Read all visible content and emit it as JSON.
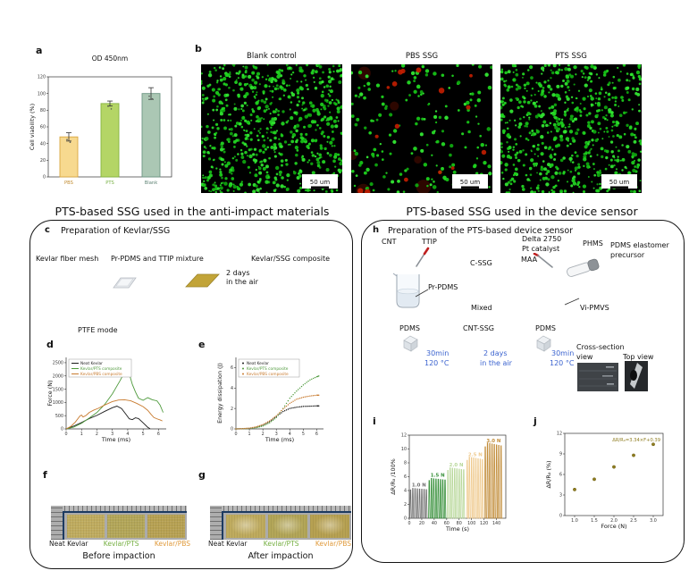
{
  "sections": {
    "left_title": "PTS-based SSG used in the anti-impact materials",
    "right_title": "PTS-based SSG used in the device sensor"
  },
  "panel_a": {
    "tag": "a"
  },
  "panel_b": {
    "tag": "b",
    "images": [
      {
        "label": "Blank control",
        "scale_label": "50 um",
        "style": "dense"
      },
      {
        "label": "PBS SSG",
        "scale_label": "50 um",
        "style": "sparse_red"
      },
      {
        "label": "PTS SSG",
        "scale_label": "50 um",
        "style": "dense2"
      }
    ]
  },
  "panel_c": {
    "tag": "c",
    "title": "Preparation of Kevlar/SSG",
    "mesh_label": "Kevlar fiber mesh",
    "mixture_label": "Pr-PDMS and TTIP mixture",
    "composite_label": "Kevlar/SSG composite",
    "duration_line1": "2 days",
    "duration_line2": "in the air"
  },
  "panel_d": {
    "tag": "d",
    "mode_title": "PTFE mode"
  },
  "panel_e": {
    "tag": "e"
  },
  "panel_f": {
    "tag": "f",
    "caption": "Before impaction",
    "strip_labels": [
      {
        "text": "Neat Kevlar",
        "color": "#1a1a1a"
      },
      {
        "text": "Kevlar/PTS",
        "color": "#76b043"
      },
      {
        "text": "Kevlar/PBS",
        "color": "#e09b3d"
      }
    ]
  },
  "panel_g": {
    "tag": "g",
    "caption": "After impaction",
    "strip_labels": [
      {
        "text": "Neat Kevlar",
        "color": "#1a1a1a"
      },
      {
        "text": "Kevlar/PTS",
        "color": "#76b043"
      },
      {
        "text": "Kevlar/PBS",
        "color": "#e09b3d"
      }
    ]
  },
  "panel_h": {
    "tag": "h",
    "title": "Preparation of the PTS-based device sensor",
    "cnt": "CNT",
    "ttip": "TTIP",
    "cssg": "C-SSG",
    "delta": "Delta 2750",
    "pt": "Pt catalyst",
    "maa": "MAA",
    "phms": "PHMS",
    "pdms_elastomer_1": "PDMS elastomer",
    "pdms_elastomer_2": "precursor",
    "pr_pdms": "Pr-PDMS",
    "mixed": "Mixed",
    "vi_pmvs": "Vi-PMVS",
    "pdms_left": "PDMS",
    "cnt_ssg": "CNT-SSG",
    "pdms_right": "PDMS",
    "cure1_line1": "30min",
    "cure1_line2": "120 °C",
    "air_line1": "2 days",
    "air_line2": "in the air",
    "cure2_line1": "30min",
    "cure2_line2": "120 °C",
    "cross_section_line1": "Cross-section",
    "cross_section_line2": "view",
    "top_view": "Top view",
    "accent_blue": "#3b63cf"
  },
  "panel_i": {
    "tag": "i"
  },
  "panel_j": {
    "tag": "j"
  },
  "chart_data": [
    {
      "id": "a",
      "type": "bar",
      "title": "OD 450nm",
      "ylabel": "Cell viability (%)",
      "categories": [
        "PBS",
        "PTS",
        "Blank"
      ],
      "values": [
        48,
        88,
        100
      ],
      "errors": [
        5,
        3,
        7
      ],
      "bar_colors": [
        "#f7d98f",
        "#b4d566",
        "#abc7b4"
      ],
      "bar_edges": [
        "#d9a741",
        "#85b440",
        "#6d9684"
      ],
      "label_colors": [
        "#c08a2e",
        "#76b043",
        "#5d8273"
      ],
      "ylim": [
        0,
        120
      ],
      "yticks": [
        0,
        20,
        40,
        60,
        80,
        100,
        120
      ]
    },
    {
      "id": "d",
      "type": "line",
      "xlabel": "Time (ms)",
      "ylabel": "Force (N)",
      "xlim": [
        0,
        6.5
      ],
      "ylim": [
        0,
        2700
      ],
      "xticks": [
        0,
        1,
        2,
        3,
        4,
        5,
        6
      ],
      "yticks": [
        0,
        500,
        1000,
        1500,
        2000,
        2500
      ],
      "series": [
        {
          "name": "Neat Kevlar",
          "color": "#1a1a1a",
          "points": [
            [
              0,
              0
            ],
            [
              0.5,
              110
            ],
            [
              1,
              240
            ],
            [
              1.5,
              390
            ],
            [
              2,
              510
            ],
            [
              2.5,
              660
            ],
            [
              3,
              800
            ],
            [
              3.3,
              860
            ],
            [
              3.6,
              770
            ],
            [
              3.9,
              540
            ],
            [
              4.1,
              380
            ],
            [
              4.3,
              350
            ],
            [
              4.5,
              420
            ],
            [
              4.7,
              390
            ],
            [
              5,
              230
            ],
            [
              5.3,
              60
            ],
            [
              5.45,
              10
            ]
          ]
        },
        {
          "name": "Kevlar/PTS composite",
          "color": "#4e9a3c",
          "points": [
            [
              0,
              0
            ],
            [
              0.5,
              70
            ],
            [
              1,
              210
            ],
            [
              1.5,
              410
            ],
            [
              2,
              620
            ],
            [
              2.5,
              920
            ],
            [
              3,
              1320
            ],
            [
              3.5,
              1820
            ],
            [
              3.9,
              2250
            ],
            [
              4.1,
              2080
            ],
            [
              4.3,
              1680
            ],
            [
              4.5,
              1400
            ],
            [
              4.7,
              1160
            ],
            [
              5,
              1080
            ],
            [
              5.3,
              1180
            ],
            [
              5.6,
              1100
            ],
            [
              5.9,
              1060
            ],
            [
              6.1,
              900
            ],
            [
              6.3,
              620
            ]
          ]
        },
        {
          "name": "Kevlar/PBS composite",
          "color": "#c87a2e",
          "points": [
            [
              0,
              0
            ],
            [
              0.3,
              90
            ],
            [
              0.6,
              260
            ],
            [
              0.9,
              490
            ],
            [
              1,
              520
            ],
            [
              1.1,
              450
            ],
            [
              1.3,
              510
            ],
            [
              1.5,
              620
            ],
            [
              1.8,
              710
            ],
            [
              2.1,
              780
            ],
            [
              2.5,
              900
            ],
            [
              3,
              1030
            ],
            [
              3.4,
              1090
            ],
            [
              3.8,
              1100
            ],
            [
              4.2,
              1060
            ],
            [
              4.6,
              960
            ],
            [
              5,
              840
            ],
            [
              5.3,
              700
            ],
            [
              5.5,
              560
            ],
            [
              5.7,
              430
            ],
            [
              5.9,
              380
            ],
            [
              6.1,
              340
            ],
            [
              6.25,
              300
            ]
          ]
        }
      ]
    },
    {
      "id": "e",
      "type": "dotline",
      "xlabel": "Time (ms)",
      "ylabel": "Energy dissipation (J)",
      "xlim": [
        0,
        6.5
      ],
      "ylim": [
        0,
        7
      ],
      "xticks": [
        0,
        1,
        2,
        3,
        4,
        5,
        6
      ],
      "yticks": [
        0,
        2,
        4,
        6
      ],
      "series": [
        {
          "name": "Neat Kevlar",
          "color": "#1a1a1a",
          "points": [
            [
              0,
              0
            ],
            [
              0.5,
              0.02
            ],
            [
              1,
              0.06
            ],
            [
              1.5,
              0.16
            ],
            [
              2,
              0.36
            ],
            [
              2.5,
              0.72
            ],
            [
              3,
              1.2
            ],
            [
              3.5,
              1.7
            ],
            [
              4,
              2.0
            ],
            [
              4.5,
              2.12
            ],
            [
              5,
              2.2
            ],
            [
              5.5,
              2.22
            ],
            [
              6,
              2.25
            ],
            [
              6.2,
              2.25
            ]
          ]
        },
        {
          "name": "Kevlar/PTS composite",
          "color": "#4e9a3c",
          "points": [
            [
              0,
              0
            ],
            [
              0.5,
              0.01
            ],
            [
              1,
              0.04
            ],
            [
              1.5,
              0.12
            ],
            [
              2,
              0.28
            ],
            [
              2.5,
              0.6
            ],
            [
              3,
              1.1
            ],
            [
              3.5,
              2.0
            ],
            [
              4,
              3.0
            ],
            [
              4.5,
              3.7
            ],
            [
              5,
              4.3
            ],
            [
              5.5,
              4.8
            ],
            [
              6,
              5.1
            ],
            [
              6.2,
              5.2
            ]
          ]
        },
        {
          "name": "Kevlar/PBS composite",
          "color": "#c87a2e",
          "points": [
            [
              0,
              0
            ],
            [
              0.5,
              0.02
            ],
            [
              1,
              0.07
            ],
            [
              1.5,
              0.2
            ],
            [
              2,
              0.42
            ],
            [
              2.5,
              0.78
            ],
            [
              3,
              1.28
            ],
            [
              3.5,
              1.95
            ],
            [
              4,
              2.5
            ],
            [
              4.5,
              2.9
            ],
            [
              5,
              3.1
            ],
            [
              5.5,
              3.22
            ],
            [
              6,
              3.3
            ],
            [
              6.2,
              3.3
            ]
          ]
        }
      ]
    },
    {
      "id": "i",
      "type": "pulse",
      "xlabel": "Time (s)",
      "ylabel": "ΔR/R₀ /100%",
      "xlim": [
        0,
        155
      ],
      "ylim": [
        0,
        12
      ],
      "xticks": [
        0,
        20,
        40,
        60,
        80,
        100,
        120,
        140
      ],
      "yticks": [
        0,
        2,
        4,
        6,
        8,
        10,
        12
      ],
      "groups": [
        {
          "label": "1.0 N",
          "color": "#6f6f6f",
          "start": 1,
          "end": 30,
          "pulses": 8,
          "peak": 4.2
        },
        {
          "label": "1.5 N",
          "color": "#37903a",
          "start": 31,
          "end": 60,
          "pulses": 8,
          "peak": 5.6
        },
        {
          "label": "2.0 N",
          "color": "#b9d89b",
          "start": 61,
          "end": 90,
          "pulses": 8,
          "peak": 7.1
        },
        {
          "label": "2.5 N",
          "color": "#efca8e",
          "start": 92,
          "end": 120,
          "pulses": 8,
          "peak": 8.6
        },
        {
          "label": "3.0 N",
          "color": "#c28d3a",
          "start": 121,
          "end": 150,
          "pulses": 8,
          "peak": 10.6
        }
      ]
    },
    {
      "id": "j",
      "type": "scatter",
      "xlabel": "Force (N)",
      "ylabel": "ΔR/R₀ (%)",
      "xlim": [
        0.75,
        3.25
      ],
      "ylim": [
        0,
        12
      ],
      "xticks": [
        "1.0",
        "1.5",
        "2.0",
        "2.5",
        "3.0"
      ],
      "yticks": [
        0,
        3,
        6,
        9,
        12
      ],
      "annotation": "ΔR/R₀=3.34×F+0.39",
      "point_color": "#8f7d20",
      "points": [
        [
          1.0,
          3.8
        ],
        [
          1.5,
          5.3
        ],
        [
          2.0,
          7.1
        ],
        [
          2.5,
          8.8
        ],
        [
          3.0,
          10.4
        ]
      ]
    }
  ]
}
